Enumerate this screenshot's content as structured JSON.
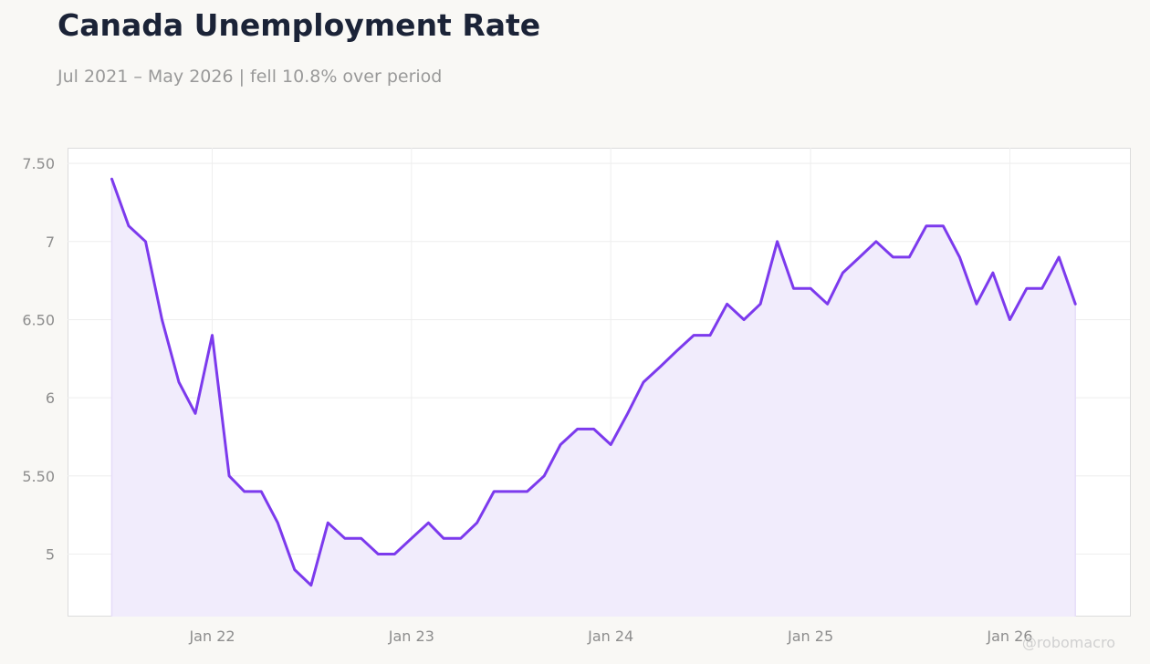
{
  "title": "Canada Unemployment Rate",
  "subtitle": "Jul 2021 – May 2026 | fell 10.8% over period",
  "watermark": "@robomacro",
  "colors": {
    "line": "#7c3aed",
    "fill": "#f1ecfc",
    "background": "#f9f8f5",
    "plot_background": "#ffffff"
  },
  "chart_data": {
    "type": "area",
    "title": "Canada Unemployment Rate",
    "subtitle": "Jul 2021 – May 2026 | fell 10.8% over period",
    "xlabel": "",
    "ylabel": "",
    "ylim": [
      4.6,
      7.6
    ],
    "xlim": [
      "2021-04-11",
      "2026-08-09"
    ],
    "grid": true,
    "legend": "none",
    "y_ticks": [
      5,
      5.5,
      6,
      6.5,
      7,
      7.5
    ],
    "y_tick_labels": [
      "5",
      "5.50",
      "6",
      "6.50",
      "7",
      "7.50"
    ],
    "x_ticks": [
      "2022-01-01",
      "2023-01-01",
      "2024-01-01",
      "2025-01-01",
      "2026-01-01"
    ],
    "x_tick_labels": [
      "Jan 22",
      "Jan 23",
      "Jan 24",
      "Jan 25",
      "Jan 26"
    ],
    "series": [
      {
        "x": [
          "2021-07-01",
          "2021-08-01",
          "2021-09-01",
          "2021-10-01",
          "2021-11-01",
          "2021-12-01",
          "2022-01-01",
          "2022-02-01",
          "2022-03-01",
          "2022-04-01",
          "2022-05-01",
          "2022-06-01",
          "2022-07-01",
          "2022-08-01",
          "2022-09-01",
          "2022-10-01",
          "2022-11-01",
          "2022-12-01",
          "2023-01-01",
          "2023-02-01",
          "2023-03-01",
          "2023-04-01",
          "2023-05-01",
          "2023-06-01",
          "2023-07-01",
          "2023-08-01",
          "2023-09-01",
          "2023-10-01",
          "2023-11-01",
          "2023-12-01",
          "2024-01-01",
          "2024-02-01",
          "2024-03-01",
          "2024-04-01",
          "2024-05-01",
          "2024-06-01",
          "2024-07-01",
          "2024-08-01",
          "2024-09-01",
          "2024-10-01",
          "2024-11-01",
          "2024-12-01",
          "2025-01-01",
          "2025-02-01",
          "2025-03-01",
          "2025-04-01",
          "2025-05-01",
          "2025-06-01",
          "2025-07-01",
          "2025-08-01",
          "2025-09-01",
          "2025-10-01",
          "2025-11-01",
          "2025-12-01",
          "2026-01-01",
          "2026-02-01",
          "2026-03-01",
          "2026-04-01",
          "2026-05-01"
        ],
        "values": [
          7.4,
          7.1,
          7.0,
          6.5,
          6.1,
          5.9,
          6.4,
          5.5,
          5.4,
          5.4,
          5.2,
          4.9,
          4.8,
          5.2,
          5.1,
          5.1,
          5.0,
          5.0,
          5.1,
          5.2,
          5.1,
          5.1,
          5.2,
          5.4,
          5.4,
          5.4,
          5.5,
          5.7,
          5.8,
          5.8,
          5.7,
          5.9,
          6.1,
          6.2,
          6.3,
          6.4,
          6.4,
          6.6,
          6.5,
          6.6,
          7.0,
          6.7,
          6.7,
          6.6,
          6.8,
          6.9,
          7.0,
          6.9,
          6.9,
          7.1,
          7.1,
          6.9,
          6.6,
          6.8,
          6.5,
          6.7,
          6.7,
          6.9,
          6.6
        ]
      }
    ]
  }
}
